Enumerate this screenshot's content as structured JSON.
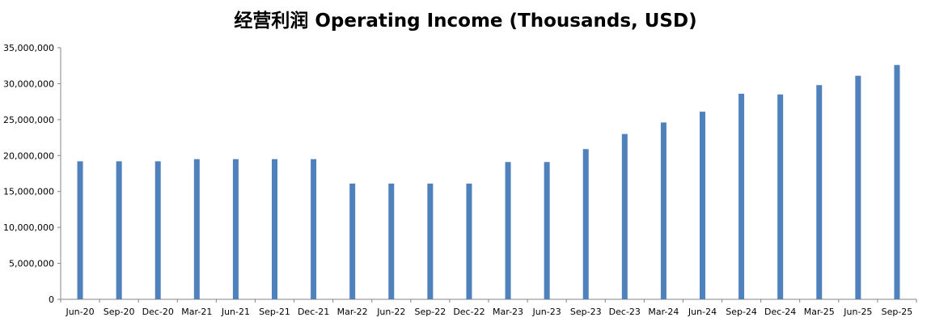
{
  "chart_data": {
    "type": "bar",
    "title": "经营利润 Operating Income (Thousands, USD)",
    "xlabel": "",
    "ylabel": "",
    "ylim": [
      0,
      35000000
    ],
    "yticks": [
      "0",
      "5,000,000",
      "10,000,000",
      "15,000,000",
      "20,000,000",
      "25,000,000",
      "30,000,000",
      "35,000,000"
    ],
    "grid": false,
    "legend": "none",
    "bar_color": "#4f81bd",
    "categories": [
      "Jun-20",
      "Sep-20",
      "Dec-20",
      "Mar-21",
      "Jun-21",
      "Sep-21",
      "Dec-21",
      "Mar-22",
      "Jun-22",
      "Sep-22",
      "Dec-22",
      "Mar-23",
      "Jun-23",
      "Sep-23",
      "Dec-23",
      "Mar-24",
      "Jun-24",
      "Sep-24",
      "Dec-24",
      "Mar-25",
      "Jun-25",
      "Sep-25"
    ],
    "values": [
      19200000,
      19200000,
      19200000,
      19500000,
      19500000,
      19500000,
      19500000,
      16100000,
      16100000,
      16100000,
      16100000,
      19100000,
      19100000,
      20900000,
      23000000,
      24600000,
      26100000,
      28600000,
      28500000,
      29800000,
      31100000,
      32600000
    ]
  }
}
